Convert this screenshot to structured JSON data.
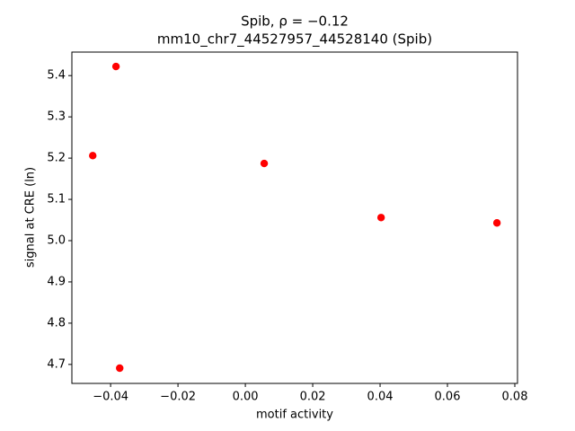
{
  "chart_data": {
    "type": "scatter",
    "title": "Spib, ρ = −0.12",
    "subtitle": "mm10_chr7_44527957_44528140 (Spib)",
    "x_label": "motif activity",
    "y_label": "signal at CRE (ln)",
    "color": "#ff0000",
    "x": [
      -0.0384,
      -0.0453,
      0.0056,
      0.0403,
      0.0747,
      -0.0373
    ],
    "values": [
      5.422,
      5.206,
      5.187,
      5.056,
      5.043,
      4.691
    ],
    "xlim": [
      -0.0515,
      0.0808
    ],
    "ylim": [
      4.654,
      5.457
    ],
    "xticks": [
      {
        "value": -0.04,
        "label": "−0.04"
      },
      {
        "value": -0.02,
        "label": "−0.02"
      },
      {
        "value": 0,
        "label": "0.00"
      },
      0.02,
      0.04,
      0.06,
      0.08
    ],
    "yticks": [
      4.7,
      4.8,
      4.9,
      {
        "value": 5,
        "label": "5.0"
      },
      5.1,
      5.2,
      5.3,
      5.4
    ],
    "grid": false
  }
}
